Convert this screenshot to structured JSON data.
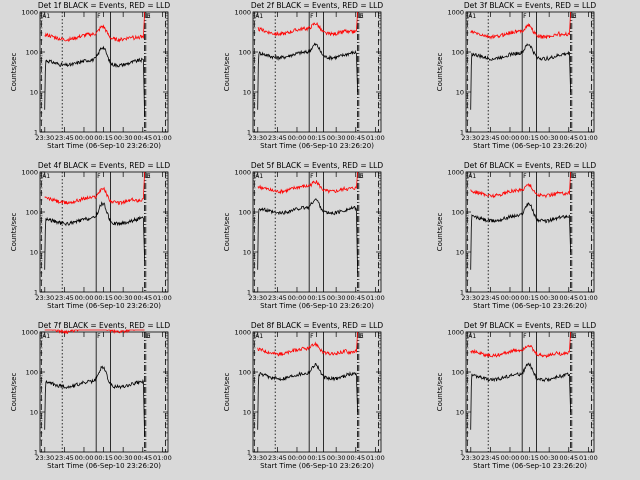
{
  "chart_data": {
    "type": "line",
    "common": {
      "xlabel": "Start Time (06-Sep-10 23:26:20)",
      "ylabel": "Counts/sec",
      "x_ticks": [
        "23:30",
        "23:45",
        "00:00",
        "00:15",
        "00:30",
        "00:45",
        "01:00"
      ],
      "x_range_min": [
        0,
        98
      ],
      "y_scale": "log",
      "y_range": [
        1,
        1000
      ],
      "y_ticks": [
        "1",
        "10",
        "100",
        "1000"
      ],
      "grid": false,
      "series_colors": {
        "events": "#000000",
        "lld": "#ff0000"
      },
      "vlines": [
        {
          "x_min": 1,
          "style": "dashed",
          "label": "A1"
        },
        {
          "x_min": 17,
          "style": "dotted",
          "label": ""
        },
        {
          "x_min": 43,
          "style": "solid",
          "label": "F"
        },
        {
          "x_min": 54,
          "style": "solid",
          "label": ""
        },
        {
          "x_min": 80,
          "style": "dashdot",
          "label": "D"
        },
        {
          "x_min": 81,
          "style": "dashdot",
          "label": "E"
        },
        {
          "x_min": 96,
          "style": "dashed",
          "label": ""
        }
      ]
    },
    "panels": [
      {
        "title": "Det 1f BLACK = Events, RED = LLD",
        "events": {
          "start": 3.6,
          "base": 55,
          "peak": 130,
          "end": 2.5
        },
        "lld": {
          "base": 240,
          "peak": 420,
          "end": 1000,
          "pre_end": 200
        }
      },
      {
        "title": "Det 2f BLACK = Events, RED = LLD",
        "events": {
          "start": 3.6,
          "base": 85,
          "peak": 150,
          "end": 10
        },
        "lld": {
          "base": 330,
          "peak": 500,
          "end": 1000,
          "pre_end": 260
        }
      },
      {
        "title": "Det 3f BLACK = Events, RED = LLD",
        "events": {
          "start": 3.6,
          "base": 80,
          "peak": 150,
          "end": 10
        },
        "lld": {
          "base": 280,
          "peak": 450,
          "end": 1000,
          "pre_end": 240
        }
      },
      {
        "title": "Det 4f BLACK = Events, RED = LLD",
        "events": {
          "start": 3.6,
          "base": 60,
          "peak": 160,
          "end": 6
        },
        "lld": {
          "base": 200,
          "peak": 380,
          "end": 1000,
          "pre_end": 180
        }
      },
      {
        "title": "Det 5f BLACK = Events, RED = LLD",
        "events": {
          "start": 3.6,
          "base": 110,
          "peak": 200,
          "end": 3
        },
        "lld": {
          "base": 380,
          "peak": 550,
          "end": 1000,
          "pre_end": 380
        }
      },
      {
        "title": "Det 6f BLACK = Events, RED = LLD",
        "events": {
          "start": 3.6,
          "base": 70,
          "peak": 160,
          "end": 10
        },
        "lld": {
          "base": 300,
          "peak": 470,
          "end": 1000,
          "pre_end": 260
        }
      },
      {
        "title": "Det 7f BLACK = Events, RED = LLD",
        "events": {
          "start": 3.6,
          "base": 50,
          "peak": 130,
          "end": 2.5
        },
        "lld": {
          "base": 1200,
          "peak": 1200,
          "end": 1200,
          "pre_end": 1200
        }
      },
      {
        "title": "Det 8f BLACK = Events, RED = LLD",
        "events": {
          "start": 3.6,
          "base": 80,
          "peak": 150,
          "end": 10
        },
        "lld": {
          "base": 330,
          "peak": 480,
          "end": 1000,
          "pre_end": 280
        }
      },
      {
        "title": "Det 9f BLACK = Events, RED = LLD",
        "events": {
          "start": 3.6,
          "base": 75,
          "peak": 150,
          "end": 10
        },
        "lld": {
          "base": 300,
          "peak": 450,
          "end": 1000,
          "pre_end": 260
        }
      }
    ]
  }
}
